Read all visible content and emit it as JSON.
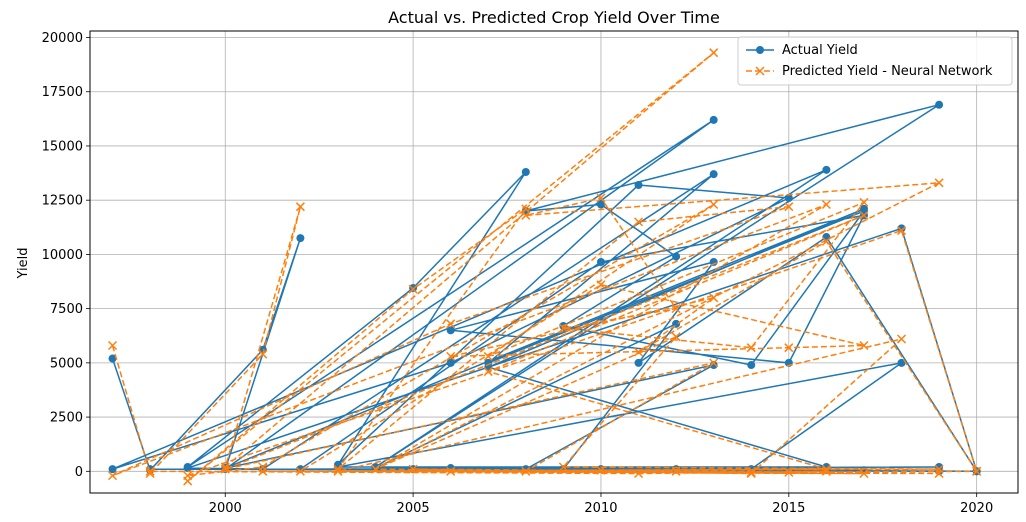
{
  "chart_data": {
    "type": "line",
    "title": "Actual vs. Predicted Crop Yield Over Time",
    "xlabel": "",
    "ylabel": "Yield",
    "xlim": [
      1996.4,
      2021.1
    ],
    "ylim": [
      -1000,
      20300
    ],
    "xticks": [
      2000,
      2005,
      2010,
      2015,
      2020
    ],
    "yticks": [
      0,
      2500,
      5000,
      7500,
      10000,
      12500,
      15000,
      17500,
      20000
    ],
    "ytick_labels": [
      "0",
      "2500",
      "5000",
      "7500",
      "10000",
      "12500",
      "15000",
      "17500",
      "20000"
    ],
    "grid": true,
    "legend_position": "top-right",
    "colors": {
      "actual": "#1f77b4",
      "predicted": "#ff7f0e"
    },
    "series": [
      {
        "name": "Actual Yield",
        "style": "solid-circle",
        "x": [
          1997,
          1998,
          2001,
          2002,
          2000,
          2013,
          1999,
          2005,
          2008,
          2003,
          2011,
          2015,
          2006,
          1997,
          2016,
          2004,
          2019,
          2008,
          2010,
          2012,
          2009,
          2014,
          2017,
          2007,
          2013,
          2001,
          1999,
          2018,
          2020,
          2016,
          2011,
          2013,
          2006,
          2015,
          2017,
          2010,
          2002,
          2019,
          2009,
          2012,
          2004,
          2014,
          2018,
          2003,
          2016,
          2007,
          2017,
          2000,
          2013,
          2008,
          2005,
          2012,
          2015,
          2001,
          2019,
          2010,
          2006,
          2017,
          1998,
          2011,
          2016,
          2014,
          2020
        ],
        "y": [
          5200,
          50,
          5600,
          10750,
          100,
          16200,
          200,
          8450,
          13800,
          300,
          13200,
          12600,
          5000,
          100,
          13900,
          200,
          16900,
          12000,
          12300,
          9900,
          6700,
          4900,
          12000,
          5000,
          13700,
          100,
          150,
          11200,
          0,
          10800,
          5000,
          9650,
          6500,
          5000,
          11800,
          9650,
          100,
          200,
          100,
          6800,
          150,
          100,
          5000,
          200,
          200,
          4800,
          12100,
          150,
          4900,
          100,
          100,
          100,
          50,
          100,
          0,
          100,
          150,
          50,
          100,
          50,
          50,
          50,
          0
        ]
      },
      {
        "name": "Predicted Yield - Neural Network",
        "style": "dashed-x",
        "x": [
          1997,
          1998,
          2001,
          2002,
          2000,
          2013,
          1999,
          2005,
          2008,
          2003,
          2011,
          2015,
          2006,
          1997,
          2016,
          2004,
          2019,
          2008,
          2010,
          2012,
          2009,
          2014,
          2017,
          2007,
          2013,
          2001,
          1999,
          2018,
          2020,
          2016,
          2011,
          2013,
          2006,
          2015,
          2017,
          2010,
          2002,
          2019,
          2009,
          2012,
          2004,
          2014,
          2018,
          2003,
          2016,
          2007,
          2017,
          2000,
          2013,
          2008,
          2005,
          2012,
          2015,
          2001,
          2019,
          2010,
          2006,
          2017,
          1998,
          2011,
          2016,
          2014,
          2020
        ],
        "y": [
          5800,
          -100,
          5400,
          12200,
          200,
          19300,
          -450,
          8400,
          12100,
          100,
          11500,
          12200,
          6800,
          -200,
          12300,
          100,
          13300,
          11800,
          12600,
          7500,
          6600,
          5700,
          12400,
          5300,
          12300,
          200,
          -200,
          11100,
          0,
          10600,
          5500,
          8000,
          5300,
          5700,
          5800,
          8600,
          0,
          100,
          200,
          6200,
          100,
          -100,
          6100,
          0,
          100,
          4600,
          11800,
          100,
          5000,
          0,
          100,
          0,
          -50,
          0,
          -100,
          50,
          0,
          -100,
          0,
          -100,
          0,
          -50,
          0
        ]
      }
    ]
  }
}
